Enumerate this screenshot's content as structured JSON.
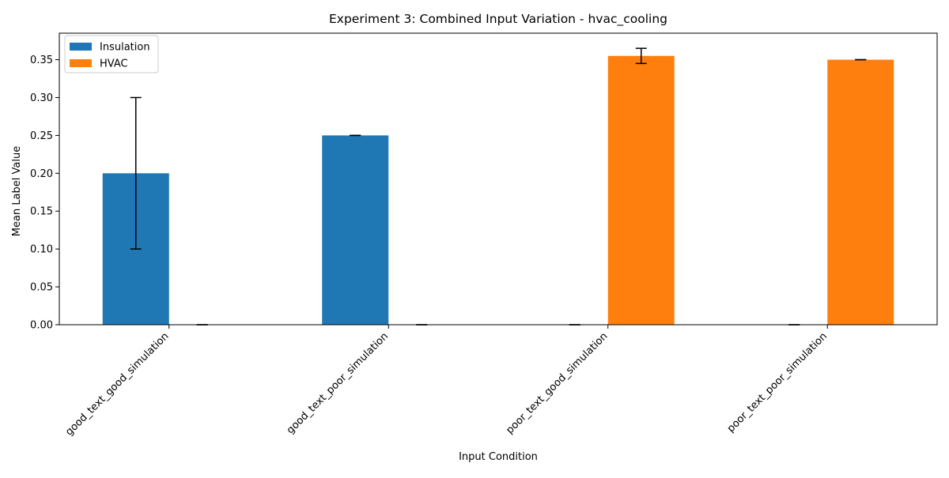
{
  "chart_data": {
    "type": "bar",
    "title": "Experiment 3: Combined Input Variation - hvac_cooling",
    "xlabel": "Input Condition",
    "ylabel": "Mean Label Value",
    "categories": [
      "good_text_good_simulation",
      "good_text_poor_simulation",
      "poor_text_good_simulation",
      "poor_text_poor_simulation"
    ],
    "series": [
      {
        "name": "Insulation",
        "color": "#1f77b4",
        "values": [
          0.2,
          0.25,
          0.0,
          0.0
        ],
        "errors": [
          0.1,
          0.0,
          0.0,
          0.0
        ]
      },
      {
        "name": "HVAC",
        "color": "#ff7f0e",
        "values": [
          0.0,
          0.0,
          0.355,
          0.35
        ],
        "errors": [
          0.0,
          0.0,
          0.01,
          0.0
        ]
      }
    ],
    "ylim": [
      0,
      0.385
    ],
    "yticks": [
      0.0,
      0.05,
      0.1,
      0.15,
      0.2,
      0.25,
      0.3,
      0.35
    ],
    "grid": false,
    "legend_position": "top-left"
  }
}
